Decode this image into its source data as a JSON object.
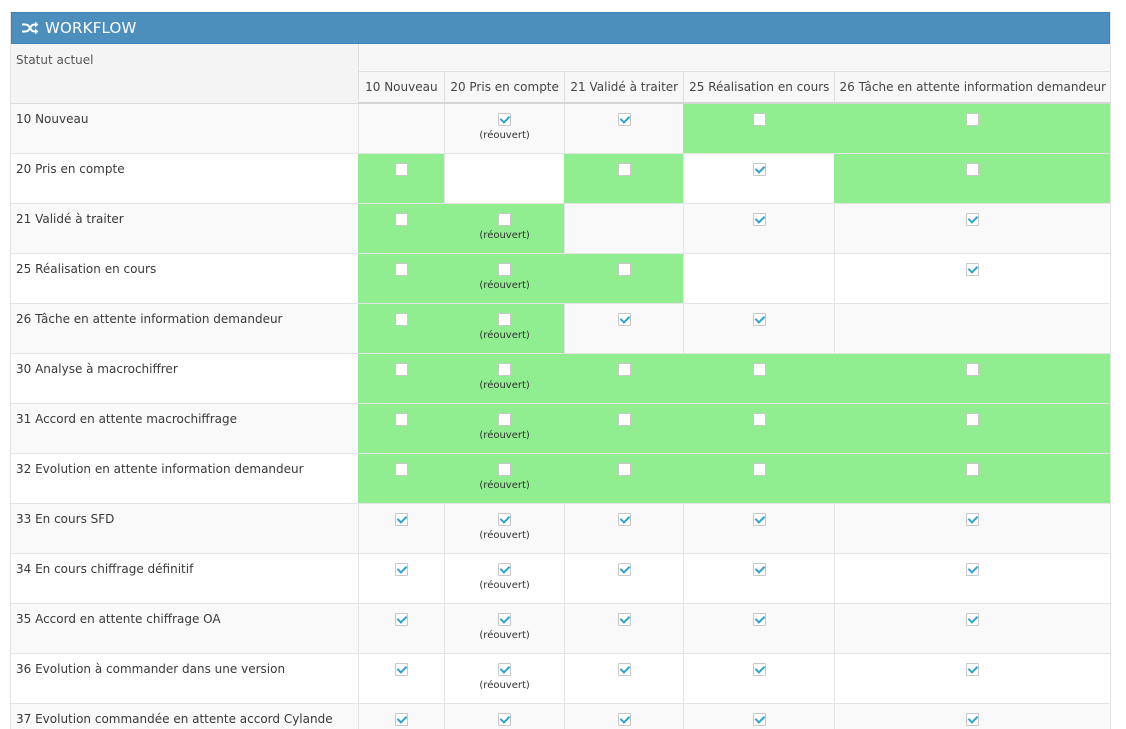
{
  "panel": {
    "title": "WORKFLOW",
    "icon": "shuffle-icon"
  },
  "table": {
    "corner_label": "Statut actuel",
    "columns": [
      "10 Nouveau",
      "20 Pris en compte",
      "21 Validé à traiter",
      "25 Réalisation en cours",
      "26 Tâche en attente information demandeur"
    ],
    "reopened_label": "(réouvert)",
    "rows": [
      {
        "label": "10 Nouveau",
        "cells": [
          {
            "box": false
          },
          {
            "box": true,
            "checked": true,
            "reopened": true
          },
          {
            "box": true,
            "checked": true
          },
          {
            "box": true,
            "checked": false,
            "green": true
          },
          {
            "box": true,
            "checked": false,
            "green": true
          }
        ]
      },
      {
        "label": "20 Pris en compte",
        "cells": [
          {
            "box": true,
            "checked": false,
            "green": true
          },
          {
            "box": false,
            "white": true
          },
          {
            "box": true,
            "checked": false,
            "green": true
          },
          {
            "box": true,
            "checked": true,
            "white": true
          },
          {
            "box": true,
            "checked": false,
            "green": true
          }
        ]
      },
      {
        "label": "21 Validé à traiter",
        "cells": [
          {
            "box": true,
            "checked": false,
            "green": true
          },
          {
            "box": true,
            "checked": false,
            "reopened": true,
            "green": true
          },
          {
            "box": false
          },
          {
            "box": true,
            "checked": true
          },
          {
            "box": true,
            "checked": true
          }
        ]
      },
      {
        "label": "25 Réalisation en cours",
        "cells": [
          {
            "box": true,
            "checked": false,
            "green": true
          },
          {
            "box": true,
            "checked": false,
            "reopened": true,
            "green": true
          },
          {
            "box": true,
            "checked": false,
            "green": true
          },
          {
            "box": false,
            "white": true
          },
          {
            "box": true,
            "checked": true,
            "white": true
          }
        ]
      },
      {
        "label": "26 Tâche en attente information demandeur",
        "cells": [
          {
            "box": true,
            "checked": false,
            "green": true
          },
          {
            "box": true,
            "checked": false,
            "reopened": true,
            "green": true
          },
          {
            "box": true,
            "checked": true
          },
          {
            "box": true,
            "checked": true
          },
          {
            "box": false
          }
        ]
      },
      {
        "label": "30 Analyse à macrochiffrer",
        "cells": [
          {
            "box": true,
            "checked": false,
            "green": true
          },
          {
            "box": true,
            "checked": false,
            "reopened": true,
            "green": true
          },
          {
            "box": true,
            "checked": false,
            "green": true
          },
          {
            "box": true,
            "checked": false,
            "green": true
          },
          {
            "box": true,
            "checked": false,
            "green": true
          }
        ]
      },
      {
        "label": "31 Accord en attente macrochiffrage",
        "cells": [
          {
            "box": true,
            "checked": false,
            "green": true
          },
          {
            "box": true,
            "checked": false,
            "reopened": true,
            "green": true
          },
          {
            "box": true,
            "checked": false,
            "green": true
          },
          {
            "box": true,
            "checked": false,
            "green": true
          },
          {
            "box": true,
            "checked": false,
            "green": true
          }
        ]
      },
      {
        "label": "32 Evolution en attente information demandeur",
        "cells": [
          {
            "box": true,
            "checked": false,
            "green": true
          },
          {
            "box": true,
            "checked": false,
            "reopened": true,
            "green": true
          },
          {
            "box": true,
            "checked": false,
            "green": true
          },
          {
            "box": true,
            "checked": false,
            "green": true
          },
          {
            "box": true,
            "checked": false,
            "green": true
          }
        ]
      },
      {
        "label": "33 En cours SFD",
        "cells": [
          {
            "box": true,
            "checked": true
          },
          {
            "box": true,
            "checked": true,
            "reopened": true
          },
          {
            "box": true,
            "checked": true
          },
          {
            "box": true,
            "checked": true
          },
          {
            "box": true,
            "checked": true
          }
        ]
      },
      {
        "label": "34 En cours chiffrage définitif",
        "cells": [
          {
            "box": true,
            "checked": true
          },
          {
            "box": true,
            "checked": true,
            "reopened": true
          },
          {
            "box": true,
            "checked": true
          },
          {
            "box": true,
            "checked": true
          },
          {
            "box": true,
            "checked": true
          }
        ]
      },
      {
        "label": "35 Accord en attente chiffrage OA",
        "cells": [
          {
            "box": true,
            "checked": true
          },
          {
            "box": true,
            "checked": true,
            "reopened": true
          },
          {
            "box": true,
            "checked": true
          },
          {
            "box": true,
            "checked": true
          },
          {
            "box": true,
            "checked": true
          }
        ]
      },
      {
        "label": "36 Evolution à commander dans une version",
        "cells": [
          {
            "box": true,
            "checked": true
          },
          {
            "box": true,
            "checked": true,
            "reopened": true
          },
          {
            "box": true,
            "checked": true
          },
          {
            "box": true,
            "checked": true
          },
          {
            "box": true,
            "checked": true
          }
        ]
      },
      {
        "label": "37 Evolution commandée en attente accord Cylande",
        "cells": [
          {
            "box": true,
            "checked": true
          },
          {
            "box": true,
            "checked": true,
            "reopened": true
          },
          {
            "box": true,
            "checked": true
          },
          {
            "box": true,
            "checked": true
          },
          {
            "box": true,
            "checked": true
          }
        ]
      }
    ]
  },
  "colors": {
    "header_blue": "#4c8fbd",
    "allowed_green": "#90ee90",
    "check_blue": "#32a3ce"
  }
}
